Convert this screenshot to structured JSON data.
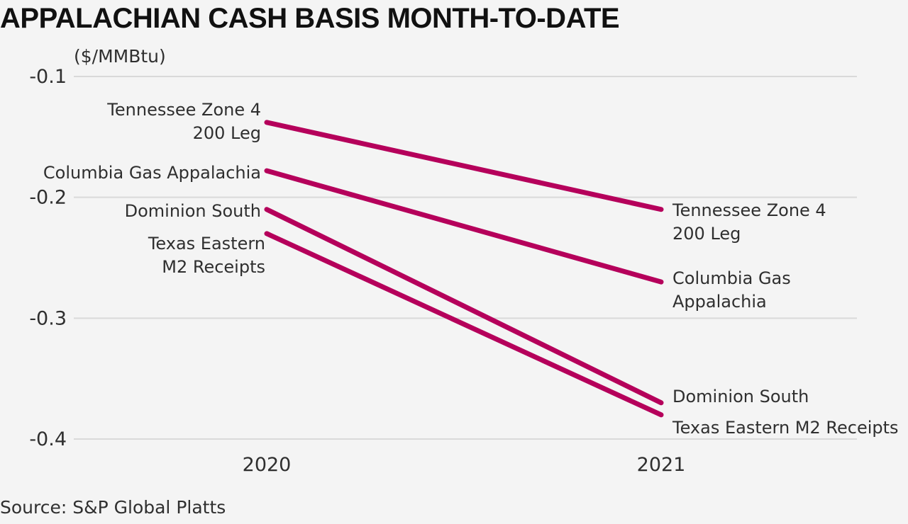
{
  "chart_data": {
    "type": "line",
    "title": "APPALACHIAN CASH BASIS MONTH-TO-DATE",
    "ylabel": "($/MMBtu)",
    "xlabel": "",
    "categories": [
      "2020",
      "2021"
    ],
    "ylim": [
      -0.4,
      -0.1
    ],
    "yticks": [
      -0.1,
      -0.2,
      -0.3,
      -0.4
    ],
    "ytick_labels": [
      "-0.1",
      "-0.2",
      "-0.3",
      "-0.4"
    ],
    "grid": true,
    "color": "#b5005b",
    "series": [
      {
        "name": "Tennessee Zone 4 200 Leg",
        "values": [
          -0.138,
          -0.21
        ],
        "label_start": [
          "Tennessee Zone 4",
          "200 Leg"
        ],
        "label_end": [
          "Tennessee Zone 4",
          "200 Leg"
        ]
      },
      {
        "name": "Columbia Gas Appalachia",
        "values": [
          -0.178,
          -0.27
        ],
        "label_start": [
          "Columbia Gas Appalachia"
        ],
        "label_end": [
          "Columbia Gas",
          "Appalachia"
        ]
      },
      {
        "name": "Dominion South",
        "values": [
          -0.21,
          -0.37
        ],
        "label_start": [
          "Dominion South"
        ],
        "label_end": [
          "Dominion South"
        ]
      },
      {
        "name": "Texas Eastern M2 Receipts",
        "values": [
          -0.23,
          -0.38
        ],
        "label_start": [
          "Texas Eastern",
          "M2 Receipts"
        ],
        "label_end": [
          "Texas Eastern M2 Receipts"
        ]
      }
    ]
  },
  "source": "Source: S&P Global Platts"
}
